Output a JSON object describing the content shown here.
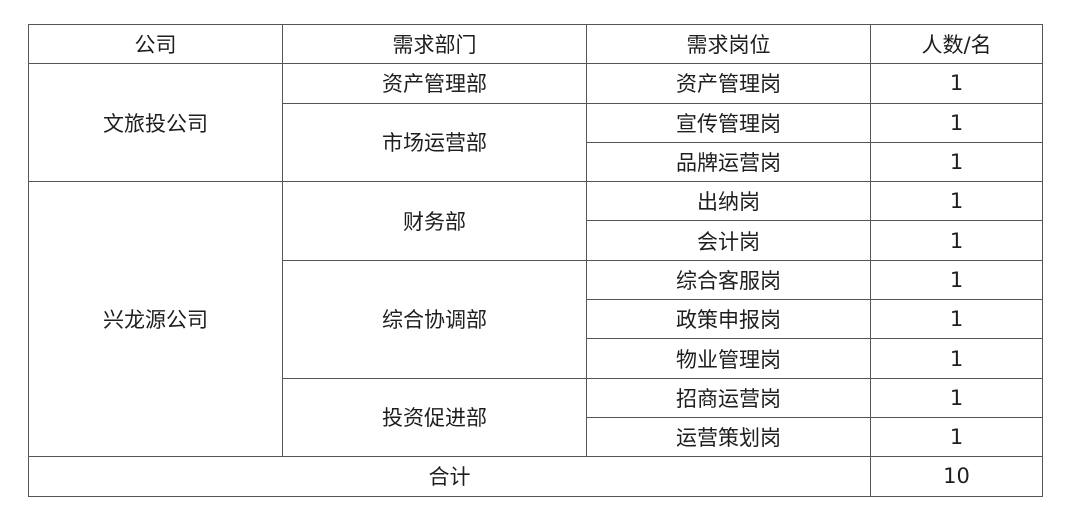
{
  "headers": [
    "公司",
    "需求部门",
    "需求岗位",
    "人数/名"
  ],
  "companies": [
    {
      "name": "文旅投公司",
      "departments": [
        {
          "name": "资产管理部",
          "positions": [
            {
              "name": "资产管理岗",
              "count": "1"
            }
          ]
        },
        {
          "name": "市场运营部",
          "positions": [
            {
              "name": "宣传管理岗",
              "count": "1"
            },
            {
              "name": "品牌运营岗",
              "count": "1"
            }
          ]
        }
      ]
    },
    {
      "name": "兴龙源公司",
      "departments": [
        {
          "name": "财务部",
          "positions": [
            {
              "name": "出纳岗",
              "count": "1"
            },
            {
              "name": "会计岗",
              "count": "1"
            }
          ]
        },
        {
          "name": "综合协调部",
          "positions": [
            {
              "name": "综合客服岗",
              "count": "1"
            },
            {
              "name": "政策申报岗",
              "count": "1"
            },
            {
              "name": "物业管理岗",
              "count": "1"
            }
          ]
        },
        {
          "name": "投资促进部",
          "positions": [
            {
              "name": "招商运营岗",
              "count": "1"
            },
            {
              "name": "运营策划岗",
              "count": "1"
            }
          ]
        }
      ]
    }
  ],
  "total": {
    "label": "合计",
    "count": "10"
  }
}
